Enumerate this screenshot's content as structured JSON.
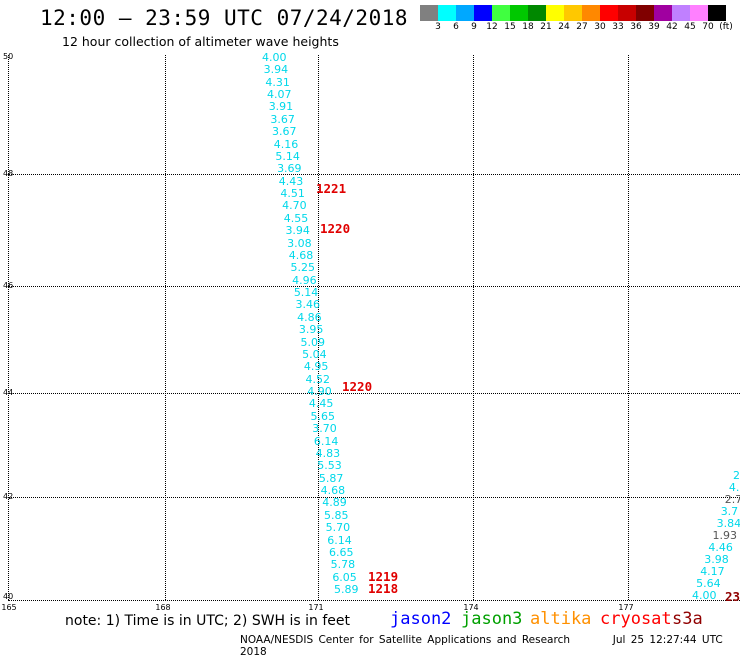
{
  "header": {
    "title": "12:00 – 23:59 UTC 07/24/2018",
    "subtitle": "12 hour collection of altimeter wave heights"
  },
  "colorbar": {
    "swatches": [
      "#808080",
      "#00ffff",
      "#00a8ff",
      "#0000ff",
      "#40ff40",
      "#00c800",
      "#008800",
      "#ffff00",
      "#ffc800",
      "#ff8800",
      "#ff0000",
      "#c80000",
      "#800000",
      "#a000a0",
      "#c080ff",
      "#ff80ff",
      "#000000"
    ],
    "labels": [
      "3",
      "6",
      "9",
      "12",
      "15",
      "18",
      "21",
      "24",
      "27",
      "30",
      "33",
      "36",
      "39",
      "42",
      "45",
      "70",
      "(ft)"
    ]
  },
  "map": {
    "lat_labels": [
      "50",
      "48",
      "46",
      "44",
      "42",
      "40"
    ],
    "lon_labels": [
      "165",
      "168",
      "171",
      "174",
      "177"
    ]
  },
  "track_a": {
    "color": "#00d8ea",
    "values": [
      "4.00",
      "3.94",
      "4.31",
      "4.07",
      "3.91",
      "3.67",
      "3.67",
      "4.16",
      "5.14",
      "3.69",
      "4.43",
      "4.51",
      "4.70",
      "4.55",
      "3.94",
      "3.08",
      "4.68",
      "5.25",
      "4.96",
      "5.14",
      "3.46",
      "4.86",
      "3.95",
      "5.09",
      "5.04",
      "4.95",
      "4.52",
      "4.90",
      "4.45",
      "5.65",
      "3.70",
      "6.14",
      "4.83",
      "5.53",
      "5.87",
      "4.68",
      "4.89",
      "5.85",
      "5.70",
      "6.14",
      "6.65",
      "5.78",
      "6.05",
      "5.89"
    ]
  },
  "track_b": {
    "values": [
      "2",
      "4.",
      "2.7",
      "3.7",
      "3.84",
      "1.93",
      "4.46",
      "3.98",
      "4.17",
      "5.64",
      "4.00"
    ]
  },
  "pass_labels": [
    "1221",
    "1220",
    "1220",
    "1219",
    "1218",
    "23"
  ],
  "legend": {
    "note": "note: 1) Time is in UTC; 2) SWH is in feet",
    "satellites": [
      {
        "name": "jason2",
        "color": "#0000ff"
      },
      {
        "name": "jason3",
        "color": "#00a000"
      },
      {
        "name": "altika",
        "color": "#ff9000"
      },
      {
        "name": "cryosat",
        "color": "#ff0000"
      },
      {
        "name": "s3a",
        "color": "#900000"
      }
    ]
  },
  "footer": {
    "org": "NOAA/NESDIS Center for Satellite Applications and Research",
    "timestamp": "Jul 25 12:27:44 UTC 2018"
  }
}
